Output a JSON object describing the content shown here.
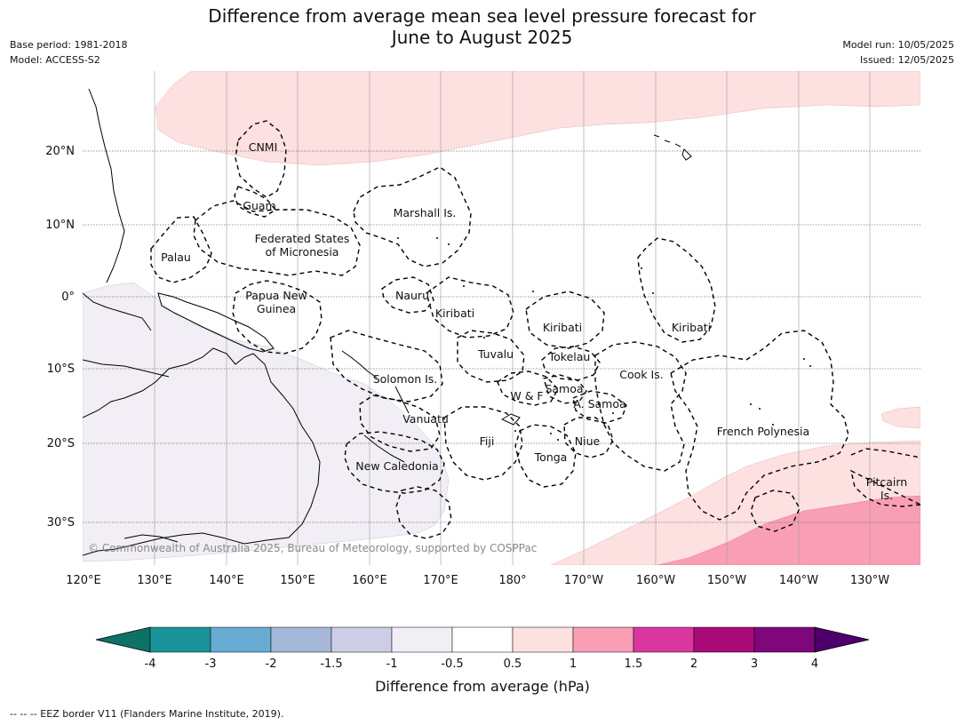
{
  "title_line1": "Difference from average mean sea level pressure forecast for",
  "title_line2": "June to August 2025",
  "base_period": "Base period: 1981-2018",
  "model": "Model: ACCESS-S2",
  "model_run": "Model run: 10/05/2025",
  "issued": "Issued: 12/05/2025",
  "lat_labels": [
    "20°N",
    "10°N",
    "0°",
    "10°S",
    "20°S",
    "30°S"
  ],
  "lon_labels": [
    "120°E",
    "130°E",
    "140°E",
    "150°E",
    "160°E",
    "170°E",
    "180°",
    "170°W",
    "160°W",
    "150°W",
    "140°W",
    "130°W"
  ],
  "regions": [
    "CNMI",
    "Guam",
    "Marshall Is.",
    "Federated States",
    "of Micronesia",
    "Palau",
    "Papua New",
    "Guinea",
    "Nauru",
    "Kiribati",
    "Kiribati",
    "Kiribati",
    "Tuvalu",
    "Tokelau",
    "Cook Is.",
    "Solomon Is.",
    "Samoa",
    "W & F",
    "A. Samoa",
    "Vanuatu",
    "Fiji",
    "Niue",
    "French Polynesia",
    "Tonga",
    "New Caledonia",
    "Pitcairn",
    "Is."
  ],
  "copyright": "© Commonwealth of Australia 2025, Bureau of Meteorology, supported by COSPPac",
  "colorbar": {
    "ticks": [
      "-4",
      "-3",
      "-2",
      "-1.5",
      "-1",
      "-0.5",
      "0.5",
      "1",
      "1.5",
      "2",
      "3",
      "4"
    ],
    "colors": [
      "#0d7266",
      "#1b939b",
      "#68abd3",
      "#a5b8d9",
      "#cdcde5",
      "#f2eef5",
      "#ffffff",
      "#fde0e0",
      "#f89eb5",
      "#d936a0",
      "#aa0a78",
      "#7e077b",
      "#4d006b"
    ],
    "label": "Difference from average (hPa)"
  },
  "footer": "--  --  -- EEZ border V11 (Flanders Marine Institute, 2019)."
}
